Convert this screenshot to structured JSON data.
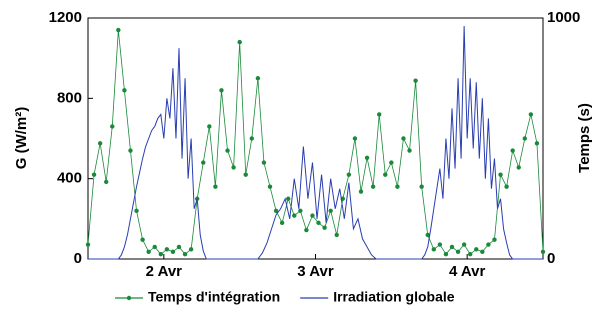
{
  "chart_data": {
    "type": "line",
    "y_label": "G  (W/m²)",
    "y2_label": "Temps (s)",
    "xlim": [
      1.5,
      4.5
    ],
    "xticks": [
      {
        "value": 2,
        "label": "2 Avr"
      },
      {
        "value": 3,
        "label": "3 Avr"
      },
      {
        "value": 4,
        "label": "4 Avr"
      }
    ],
    "ylim": [
      0,
      1200
    ],
    "yticks": [
      0,
      400,
      800,
      1200
    ],
    "y2lim": [
      0,
      1000
    ],
    "y2ticks": [
      0,
      1000
    ],
    "legend": "bottom",
    "series": [
      {
        "name": "Temps d'intégration",
        "color": "#1a8a3a",
        "axis": "y2",
        "markers": true,
        "x": [
          1.5,
          1.54,
          1.58,
          1.62,
          1.66,
          1.7,
          1.74,
          1.78,
          1.82,
          1.86,
          1.9,
          1.94,
          1.98,
          2.02,
          2.06,
          2.1,
          2.14,
          2.18,
          2.22,
          2.26,
          2.3,
          2.34,
          2.38,
          2.42,
          2.46,
          2.5,
          2.54,
          2.58,
          2.62,
          2.66,
          2.7,
          2.74,
          2.78,
          2.82,
          2.86,
          2.9,
          2.94,
          2.98,
          3.02,
          3.06,
          3.1,
          3.14,
          3.18,
          3.22,
          3.26,
          3.3,
          3.34,
          3.38,
          3.42,
          3.46,
          3.5,
          3.54,
          3.58,
          3.62,
          3.66,
          3.7,
          3.74,
          3.78,
          3.82,
          3.86,
          3.9,
          3.94,
          3.98,
          4.02,
          4.06,
          4.1,
          4.14,
          4.18,
          4.22,
          4.26,
          4.3,
          4.34,
          4.38,
          4.42,
          4.46,
          4.5
        ],
        "values": [
          60,
          350,
          480,
          320,
          550,
          950,
          700,
          450,
          200,
          80,
          30,
          50,
          20,
          40,
          30,
          50,
          20,
          40,
          250,
          400,
          550,
          300,
          700,
          450,
          380,
          900,
          350,
          500,
          750,
          400,
          300,
          200,
          150,
          250,
          180,
          200,
          120,
          180,
          150,
          130,
          200,
          100,
          250,
          350,
          500,
          280,
          420,
          300,
          600,
          350,
          400,
          300,
          500,
          450,
          740,
          300,
          100,
          40,
          60,
          20,
          50,
          30,
          60,
          20,
          40,
          30,
          60,
          80,
          350,
          300,
          450,
          380,
          500,
          600,
          480,
          30
        ]
      },
      {
        "name": "Irradiation globale",
        "color": "#2a3eb1",
        "axis": "y",
        "markers": false,
        "x": [
          1.5,
          1.6,
          1.7,
          1.72,
          1.74,
          1.76,
          1.78,
          1.8,
          1.82,
          1.84,
          1.86,
          1.88,
          1.9,
          1.92,
          1.94,
          1.96,
          1.98,
          2.0,
          2.02,
          2.04,
          2.06,
          2.08,
          2.1,
          2.12,
          2.14,
          2.16,
          2.18,
          2.2,
          2.22,
          2.24,
          2.26,
          2.28,
          2.4,
          2.5,
          2.62,
          2.65,
          2.68,
          2.71,
          2.74,
          2.77,
          2.8,
          2.83,
          2.86,
          2.89,
          2.92,
          2.95,
          2.98,
          3.01,
          3.04,
          3.07,
          3.1,
          3.13,
          3.16,
          3.19,
          3.22,
          3.25,
          3.28,
          3.31,
          3.34,
          3.37,
          3.4,
          3.5,
          3.6,
          3.7,
          3.72,
          3.74,
          3.76,
          3.78,
          3.8,
          3.82,
          3.84,
          3.86,
          3.88,
          3.9,
          3.92,
          3.94,
          3.96,
          3.98,
          4.0,
          4.02,
          4.04,
          4.06,
          4.08,
          4.1,
          4.12,
          4.14,
          4.16,
          4.18,
          4.2,
          4.22,
          4.24,
          4.26,
          4.28,
          4.3,
          4.4,
          4.5
        ],
        "values": [
          0,
          0,
          0,
          20,
          60,
          120,
          200,
          280,
          360,
          430,
          500,
          560,
          600,
          640,
          660,
          700,
          720,
          600,
          800,
          700,
          950,
          600,
          1050,
          500,
          900,
          400,
          600,
          250,
          300,
          120,
          40,
          0,
          0,
          0,
          0,
          30,
          80,
          150,
          220,
          250,
          300,
          200,
          400,
          250,
          560,
          300,
          480,
          200,
          420,
          180,
          400,
          250,
          350,
          200,
          380,
          150,
          200,
          100,
          60,
          20,
          0,
          0,
          0,
          0,
          20,
          60,
          150,
          250,
          350,
          450,
          300,
          600,
          400,
          750,
          450,
          900,
          500,
          1160,
          600,
          900,
          550,
          880,
          500,
          800,
          400,
          700,
          350,
          500,
          250,
          300,
          150,
          80,
          20,
          0,
          0,
          0
        ]
      }
    ]
  }
}
